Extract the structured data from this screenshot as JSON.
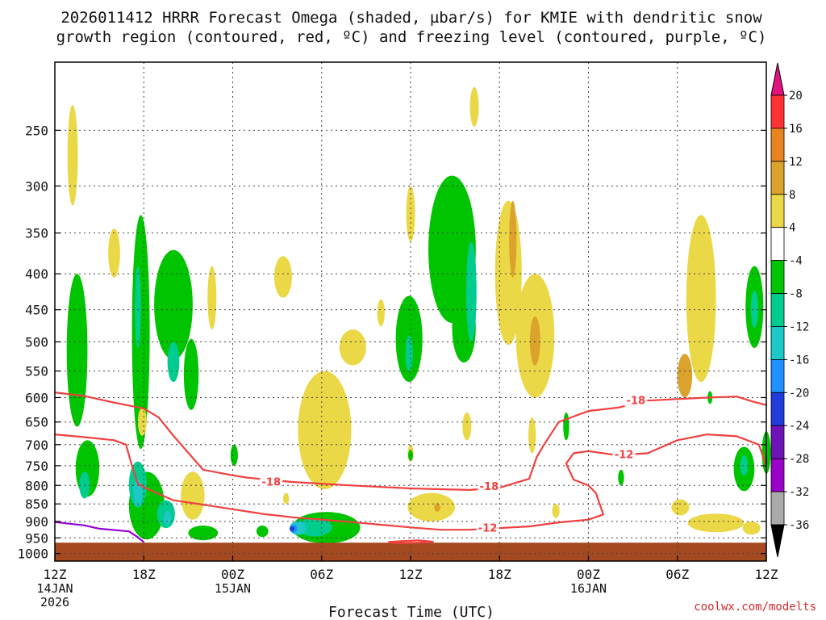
{
  "title_line1": "2026011412 HRRR Forecast Omega (shaded, µbar/s) for KMIE with dendritic snow",
  "title_line2": "growth region (contoured, red, ºC) and freezing level (contoured, purple, ºC)",
  "credit": "coolwx.com/modelts",
  "chart_data": {
    "type": "time-height cross section",
    "xlabel": "Forecast Time (UTC)",
    "x_ticks": [
      {
        "hour": 0,
        "lines": [
          "12Z",
          "14JAN",
          "2026"
        ]
      },
      {
        "hour": 6,
        "lines": [
          "18Z"
        ]
      },
      {
        "hour": 12,
        "lines": [
          "00Z",
          "15JAN"
        ]
      },
      {
        "hour": 18,
        "lines": [
          "06Z"
        ]
      },
      {
        "hour": 24,
        "lines": [
          "12Z"
        ]
      },
      {
        "hour": 30,
        "lines": [
          "18Z"
        ]
      },
      {
        "hour": 36,
        "lines": [
          "00Z",
          "16JAN"
        ]
      },
      {
        "hour": 42,
        "lines": [
          "06Z"
        ]
      },
      {
        "hour": 48,
        "lines": [
          "12Z"
        ]
      }
    ],
    "xlim": [
      0,
      48
    ],
    "y_ticks": [
      250,
      300,
      350,
      400,
      450,
      500,
      550,
      600,
      650,
      700,
      750,
      800,
      850,
      900,
      950,
      1000
    ],
    "ylim": [
      1025,
      200
    ],
    "grid": true,
    "colorbar": {
      "labels": [
        "20",
        "16",
        "12",
        "8",
        "4",
        "-4",
        "-8",
        "-12",
        "-16",
        "-20",
        "-24",
        "-28",
        "-32",
        "-36"
      ],
      "colors": [
        "#ff3333",
        "#e8841f",
        "#dba22c",
        "#ebd847",
        "#ffffff",
        "#00c400",
        "#00cc8f",
        "#1dc8c8",
        "#1e90ff",
        "#1f3cdc",
        "#6e13b8",
        "#9a00c8",
        "#aaaaaa"
      ],
      "top_triangle": "#e4127e",
      "bottom_triangle": "#000000"
    },
    "contours": [
      {
        "label": "-18",
        "color": "#f04040",
        "points": [
          [
            0,
            590
          ],
          [
            2,
            597
          ],
          [
            4,
            610
          ],
          [
            6,
            622
          ],
          [
            7,
            640
          ],
          [
            8,
            680
          ],
          [
            10,
            760
          ],
          [
            12,
            774
          ],
          [
            13,
            780
          ],
          [
            16,
            791
          ],
          [
            20,
            800
          ],
          [
            24,
            808
          ],
          [
            26,
            810
          ],
          [
            28,
            812
          ],
          [
            30,
            806
          ],
          [
            32,
            783
          ],
          [
            32.5,
            730
          ],
          [
            33,
            700
          ],
          [
            34,
            650
          ],
          [
            36,
            627
          ],
          [
            38,
            620
          ],
          [
            40,
            606
          ],
          [
            44,
            600
          ],
          [
            46,
            598
          ],
          [
            47,
            607
          ],
          [
            48,
            615
          ]
        ]
      },
      {
        "label": "-12",
        "color": "#f04040",
        "points": [
          [
            0,
            677
          ],
          [
            2,
            683
          ],
          [
            4,
            690
          ],
          [
            4.8,
            700
          ],
          [
            5.2,
            750
          ],
          [
            5.6,
            795
          ],
          [
            6,
            805
          ],
          [
            8,
            840
          ],
          [
            10,
            852
          ],
          [
            12,
            865
          ],
          [
            14,
            878
          ],
          [
            16,
            888
          ],
          [
            18,
            895
          ],
          [
            20,
            902
          ],
          [
            22,
            910
          ],
          [
            24,
            918
          ],
          [
            26,
            925
          ],
          [
            28,
            925
          ],
          [
            30,
            920
          ],
          [
            32,
            915
          ],
          [
            34,
            903
          ],
          [
            36,
            895
          ],
          [
            37,
            880
          ],
          [
            36.5,
            820
          ],
          [
            36,
            800
          ],
          [
            35,
            785
          ],
          [
            34.5,
            745
          ],
          [
            35,
            720
          ],
          [
            36,
            715
          ],
          [
            38,
            725
          ],
          [
            40,
            720
          ],
          [
            42,
            690
          ],
          [
            44,
            677
          ],
          [
            46,
            681
          ],
          [
            47.5,
            700
          ],
          [
            48,
            750
          ]
        ]
      },
      {
        "label": "",
        "color": "#f04040",
        "points": [
          [
            22.5,
            963
          ],
          [
            23.5,
            960
          ],
          [
            24.5,
            958
          ],
          [
            25.5,
            962
          ],
          [
            24.5,
            965
          ],
          [
            23,
            966
          ],
          [
            22.5,
            963
          ]
        ]
      },
      {
        "label": "",
        "color": "#9400d3",
        "points": [
          [
            0,
            902
          ],
          [
            2,
            912
          ],
          [
            3,
            922
          ],
          [
            5,
            930
          ],
          [
            5.5,
            945
          ],
          [
            6,
            963
          ]
        ]
      }
    ],
    "contour_labels": [
      {
        "text": "-18",
        "hour": 14.6,
        "p": 790
      },
      {
        "text": "-18",
        "hour": 29.3,
        "p": 802
      },
      {
        "text": "-18",
        "hour": 39.2,
        "p": 605
      },
      {
        "text": "-12",
        "hour": 29.2,
        "p": 918
      },
      {
        "text": "-12",
        "hour": 38.4,
        "p": 722
      }
    ],
    "surface": {
      "color": "#a54920",
      "from_p": 965,
      "to_p": 1025
    },
    "omega_regions": [
      {
        "v": 4,
        "hour": 1.2,
        "p": 275,
        "dh": 0.35,
        "dp": 90
      },
      {
        "v": -4,
        "hour": 1.5,
        "p": 530,
        "dh": 0.7,
        "dp": 260
      },
      {
        "v": -4,
        "hour": 2.2,
        "p": 760,
        "dh": 0.8,
        "dp": 140
      },
      {
        "v": -8,
        "hour": 2.0,
        "p": 800,
        "dh": 0.35,
        "dp": 70
      },
      {
        "v": 4,
        "hour": 4.0,
        "p": 375,
        "dh": 0.4,
        "dp": 60
      },
      {
        "v": -4,
        "hour": 5.8,
        "p": 520,
        "dh": 0.6,
        "dp": 380
      },
      {
        "v": -8,
        "hour": 5.6,
        "p": 450,
        "dh": 0.2,
        "dp": 120
      },
      {
        "v": 4,
        "hour": 5.9,
        "p": 650,
        "dh": 0.3,
        "dp": 60
      },
      {
        "v": -4,
        "hour": 8.0,
        "p": 450,
        "dh": 1.3,
        "dp": 160
      },
      {
        "v": -8,
        "hour": 8.0,
        "p": 535,
        "dh": 0.4,
        "dp": 70
      },
      {
        "v": -4,
        "hour": 9.2,
        "p": 560,
        "dh": 0.5,
        "dp": 130
      },
      {
        "v": 4,
        "hour": 10.6,
        "p": 435,
        "dh": 0.3,
        "dp": 90
      },
      {
        "v": -4,
        "hour": 6.2,
        "p": 860,
        "dh": 1.2,
        "dp": 190
      },
      {
        "v": -8,
        "hour": 5.6,
        "p": 800,
        "dh": 0.6,
        "dp": 120
      },
      {
        "v": -12,
        "hour": 5.6,
        "p": 820,
        "dh": 0.3,
        "dp": 70
      },
      {
        "v": -8,
        "hour": 7.5,
        "p": 880,
        "dh": 0.6,
        "dp": 80
      },
      {
        "v": -12,
        "hour": 7.6,
        "p": 890,
        "dh": 0.25,
        "dp": 40
      },
      {
        "v": 4,
        "hour": 9.3,
        "p": 830,
        "dh": 0.8,
        "dp": 130
      },
      {
        "v": -4,
        "hour": 10.0,
        "p": 935,
        "dh": 1.0,
        "dp": 45
      },
      {
        "v": -4,
        "hour": 12.1,
        "p": 725,
        "dh": 0.25,
        "dp": 50
      },
      {
        "v": 4,
        "hour": 15.4,
        "p": 405,
        "dh": 0.6,
        "dp": 55
      },
      {
        "v": 4,
        "hour": 18.2,
        "p": 680,
        "dh": 1.8,
        "dp": 260
      },
      {
        "v": 4,
        "hour": 15.6,
        "p": 835,
        "dh": 0.2,
        "dp": 30
      },
      {
        "v": -4,
        "hour": 18.3,
        "p": 920,
        "dh": 2.3,
        "dp": 95
      },
      {
        "v": -8,
        "hour": 17.5,
        "p": 918,
        "dh": 1.2,
        "dp": 55
      },
      {
        "v": -12,
        "hour": 16.4,
        "p": 920,
        "dh": 0.55,
        "dp": 42
      },
      {
        "v": -16,
        "hour": 16.1,
        "p": 922,
        "dh": 0.25,
        "dp": 25
      },
      {
        "v": -20,
        "hour": 16.0,
        "p": 922,
        "dh": 0.12,
        "dp": 12
      },
      {
        "v": -4,
        "hour": 14.0,
        "p": 930,
        "dh": 0.4,
        "dp": 35
      },
      {
        "v": 4,
        "hour": 20.1,
        "p": 510,
        "dh": 0.9,
        "dp": 60
      },
      {
        "v": 4,
        "hour": 22.0,
        "p": 455,
        "dh": 0.25,
        "dp": 40
      },
      {
        "v": -4,
        "hour": 23.9,
        "p": 500,
        "dh": 0.9,
        "dp": 140
      },
      {
        "v": -8,
        "hour": 23.9,
        "p": 520,
        "dh": 0.25,
        "dp": 60
      },
      {
        "v": 4,
        "hour": 24.0,
        "p": 330,
        "dh": 0.3,
        "dp": 60
      },
      {
        "v": -4,
        "hour": 26.8,
        "p": 380,
        "dh": 1.6,
        "dp": 180
      },
      {
        "v": -4,
        "hour": 27.6,
        "p": 480,
        "dh": 0.8,
        "dp": 110
      },
      {
        "v": -8,
        "hour": 28.1,
        "p": 430,
        "dh": 0.35,
        "dp": 140
      },
      {
        "v": 4,
        "hour": 28.3,
        "p": 232,
        "dh": 0.3,
        "dp": 30
      },
      {
        "v": 4,
        "hour": 24.0,
        "p": 720,
        "dh": 0.2,
        "dp": 40
      },
      {
        "v": -4,
        "hour": 24.0,
        "p": 725,
        "dh": 0.15,
        "dp": 25
      },
      {
        "v": 4,
        "hour": 25.4,
        "p": 860,
        "dh": 1.6,
        "dp": 80
      },
      {
        "v": 8,
        "hour": 25.8,
        "p": 860,
        "dh": 0.2,
        "dp": 25
      },
      {
        "v": 4,
        "hour": 27.8,
        "p": 660,
        "dh": 0.3,
        "dp": 60
      },
      {
        "v": 4,
        "hour": 30.6,
        "p": 410,
        "dh": 0.9,
        "dp": 190
      },
      {
        "v": 8,
        "hour": 30.9,
        "p": 360,
        "dh": 0.25,
        "dp": 90
      },
      {
        "v": 4,
        "hour": 32.4,
        "p": 500,
        "dh": 1.3,
        "dp": 200
      },
      {
        "v": 8,
        "hour": 32.4,
        "p": 500,
        "dh": 0.35,
        "dp": 80
      },
      {
        "v": 4,
        "hour": 32.2,
        "p": 680,
        "dh": 0.25,
        "dp": 80
      },
      {
        "v": -4,
        "hour": 34.5,
        "p": 660,
        "dh": 0.2,
        "dp": 60
      },
      {
        "v": 4,
        "hour": 33.8,
        "p": 870,
        "dh": 0.25,
        "dp": 40
      },
      {
        "v": 4,
        "hour": 43.6,
        "p": 450,
        "dh": 1.0,
        "dp": 240
      },
      {
        "v": 8,
        "hour": 42.5,
        "p": 560,
        "dh": 0.5,
        "dp": 80
      },
      {
        "v": -4,
        "hour": 44.2,
        "p": 600,
        "dh": 0.1,
        "dp": 25
      },
      {
        "v": -4,
        "hour": 38.2,
        "p": 780,
        "dh": 0.2,
        "dp": 40
      },
      {
        "v": 4,
        "hour": 44.6,
        "p": 905,
        "dh": 1.9,
        "dp": 55
      },
      {
        "v": 4,
        "hour": 42.2,
        "p": 860,
        "dh": 0.6,
        "dp": 45
      },
      {
        "v": 4,
        "hour": 47.0,
        "p": 920,
        "dh": 0.6,
        "dp": 40
      },
      {
        "v": -4,
        "hour": 47.2,
        "p": 450,
        "dh": 0.6,
        "dp": 120
      },
      {
        "v": -8,
        "hour": 47.2,
        "p": 450,
        "dh": 0.25,
        "dp": 55
      },
      {
        "v": -4,
        "hour": 46.5,
        "p": 760,
        "dh": 0.7,
        "dp": 110
      },
      {
        "v": -8,
        "hour": 46.5,
        "p": 750,
        "dh": 0.25,
        "dp": 50
      },
      {
        "v": -4,
        "hour": 48.0,
        "p": 720,
        "dh": 0.3,
        "dp": 100
      }
    ]
  }
}
